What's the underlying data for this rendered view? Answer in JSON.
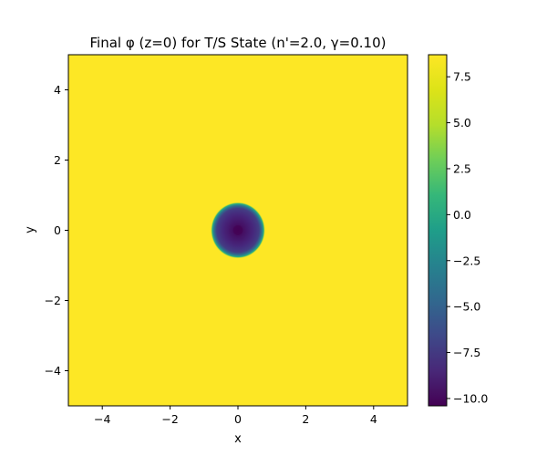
{
  "chart_data": {
    "type": "heatmap",
    "title": "Final φ (z=0) for T/S State (n'=2.0, γ=0.10)",
    "xlabel": "x",
    "ylabel": "y",
    "xlim": [
      -5,
      5
    ],
    "ylim": [
      -5,
      5
    ],
    "x_ticks": [
      -4,
      -2,
      0,
      2,
      4
    ],
    "y_ticks": [
      -4,
      -2,
      0,
      2,
      4
    ],
    "x_tick_labels": [
      "−4",
      "−2",
      "0",
      "2",
      "4"
    ],
    "y_tick_labels": [
      "−4",
      "−2",
      "0",
      "2",
      "4"
    ],
    "grid": false,
    "colormap": "viridis",
    "colorbar": {
      "range": [
        -10.4,
        8.7
      ],
      "ticks": [
        -10.0,
        -7.5,
        -5.0,
        -2.5,
        0.0,
        2.5,
        5.0,
        7.5
      ],
      "tick_labels": [
        "−10.0",
        "−7.5",
        "−5.0",
        "−2.5",
        "0.0",
        "2.5",
        "5.0",
        "7.5"
      ]
    },
    "field": {
      "background_value": 8.7,
      "core_center": [
        0,
        0
      ],
      "core_radius": 0.8,
      "core_value": -9.2,
      "core_shape": "rounded-square",
      "center_dip_value": -10.4
    }
  }
}
